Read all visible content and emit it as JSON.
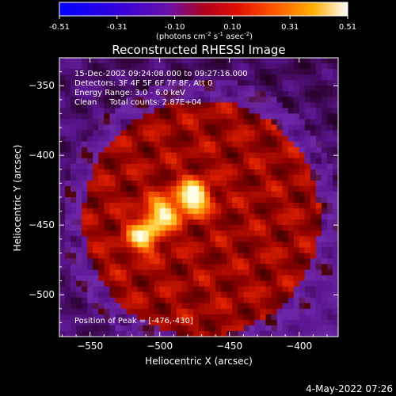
{
  "colorbar": {
    "ticks": [
      "-0.51",
      "-0.31",
      "-0.10",
      "0.10",
      "0.31",
      "0.51"
    ],
    "units_main": "(photons cm",
    "units_exp1": "-2",
    "units_mid": " s",
    "units_exp2": "-1",
    "units_end": " asec",
    "units_exp3": "-2",
    "units_close": ")"
  },
  "title": "Reconstructed RHESSI Image",
  "info": {
    "line1": "15-Dec-2002 09:24:08.000 to 09:27:16.000",
    "line2": "Detectors: 3F 4F 5F 6F 7F 8F, Att 0",
    "line3": "Energy Range: 3.0 - 6.0 keV",
    "line4": "Clean     Total counts: 2.87E+04"
  },
  "peak_text": "Position of Peak = [-476,-430]",
  "footer_date": "4-May-2022 07:26",
  "colors": {
    "background": "#000000",
    "text": "#ffffff"
  },
  "chart_data": {
    "type": "heatmap",
    "title": "Reconstructed RHESSI Image",
    "xlabel": "Heliocentric X (arcsec)",
    "ylabel": "Heliocentric Y (arcsec)",
    "xlim": [
      -572,
      -372
    ],
    "ylim": [
      -530,
      -330
    ],
    "x_ticks": [
      -550,
      -500,
      -450,
      -400
    ],
    "y_ticks": [
      -350,
      -400,
      -450,
      -500
    ],
    "colorbar_range": [
      -0.51,
      0.51
    ],
    "peak_position": [
      -476,
      -430
    ],
    "sources": [
      {
        "x": -476,
        "y": -430,
        "value": 0.51
      },
      {
        "x": -498,
        "y": -442,
        "value": 0.4
      },
      {
        "x": -512,
        "y": -458,
        "value": 0.38
      }
    ]
  }
}
